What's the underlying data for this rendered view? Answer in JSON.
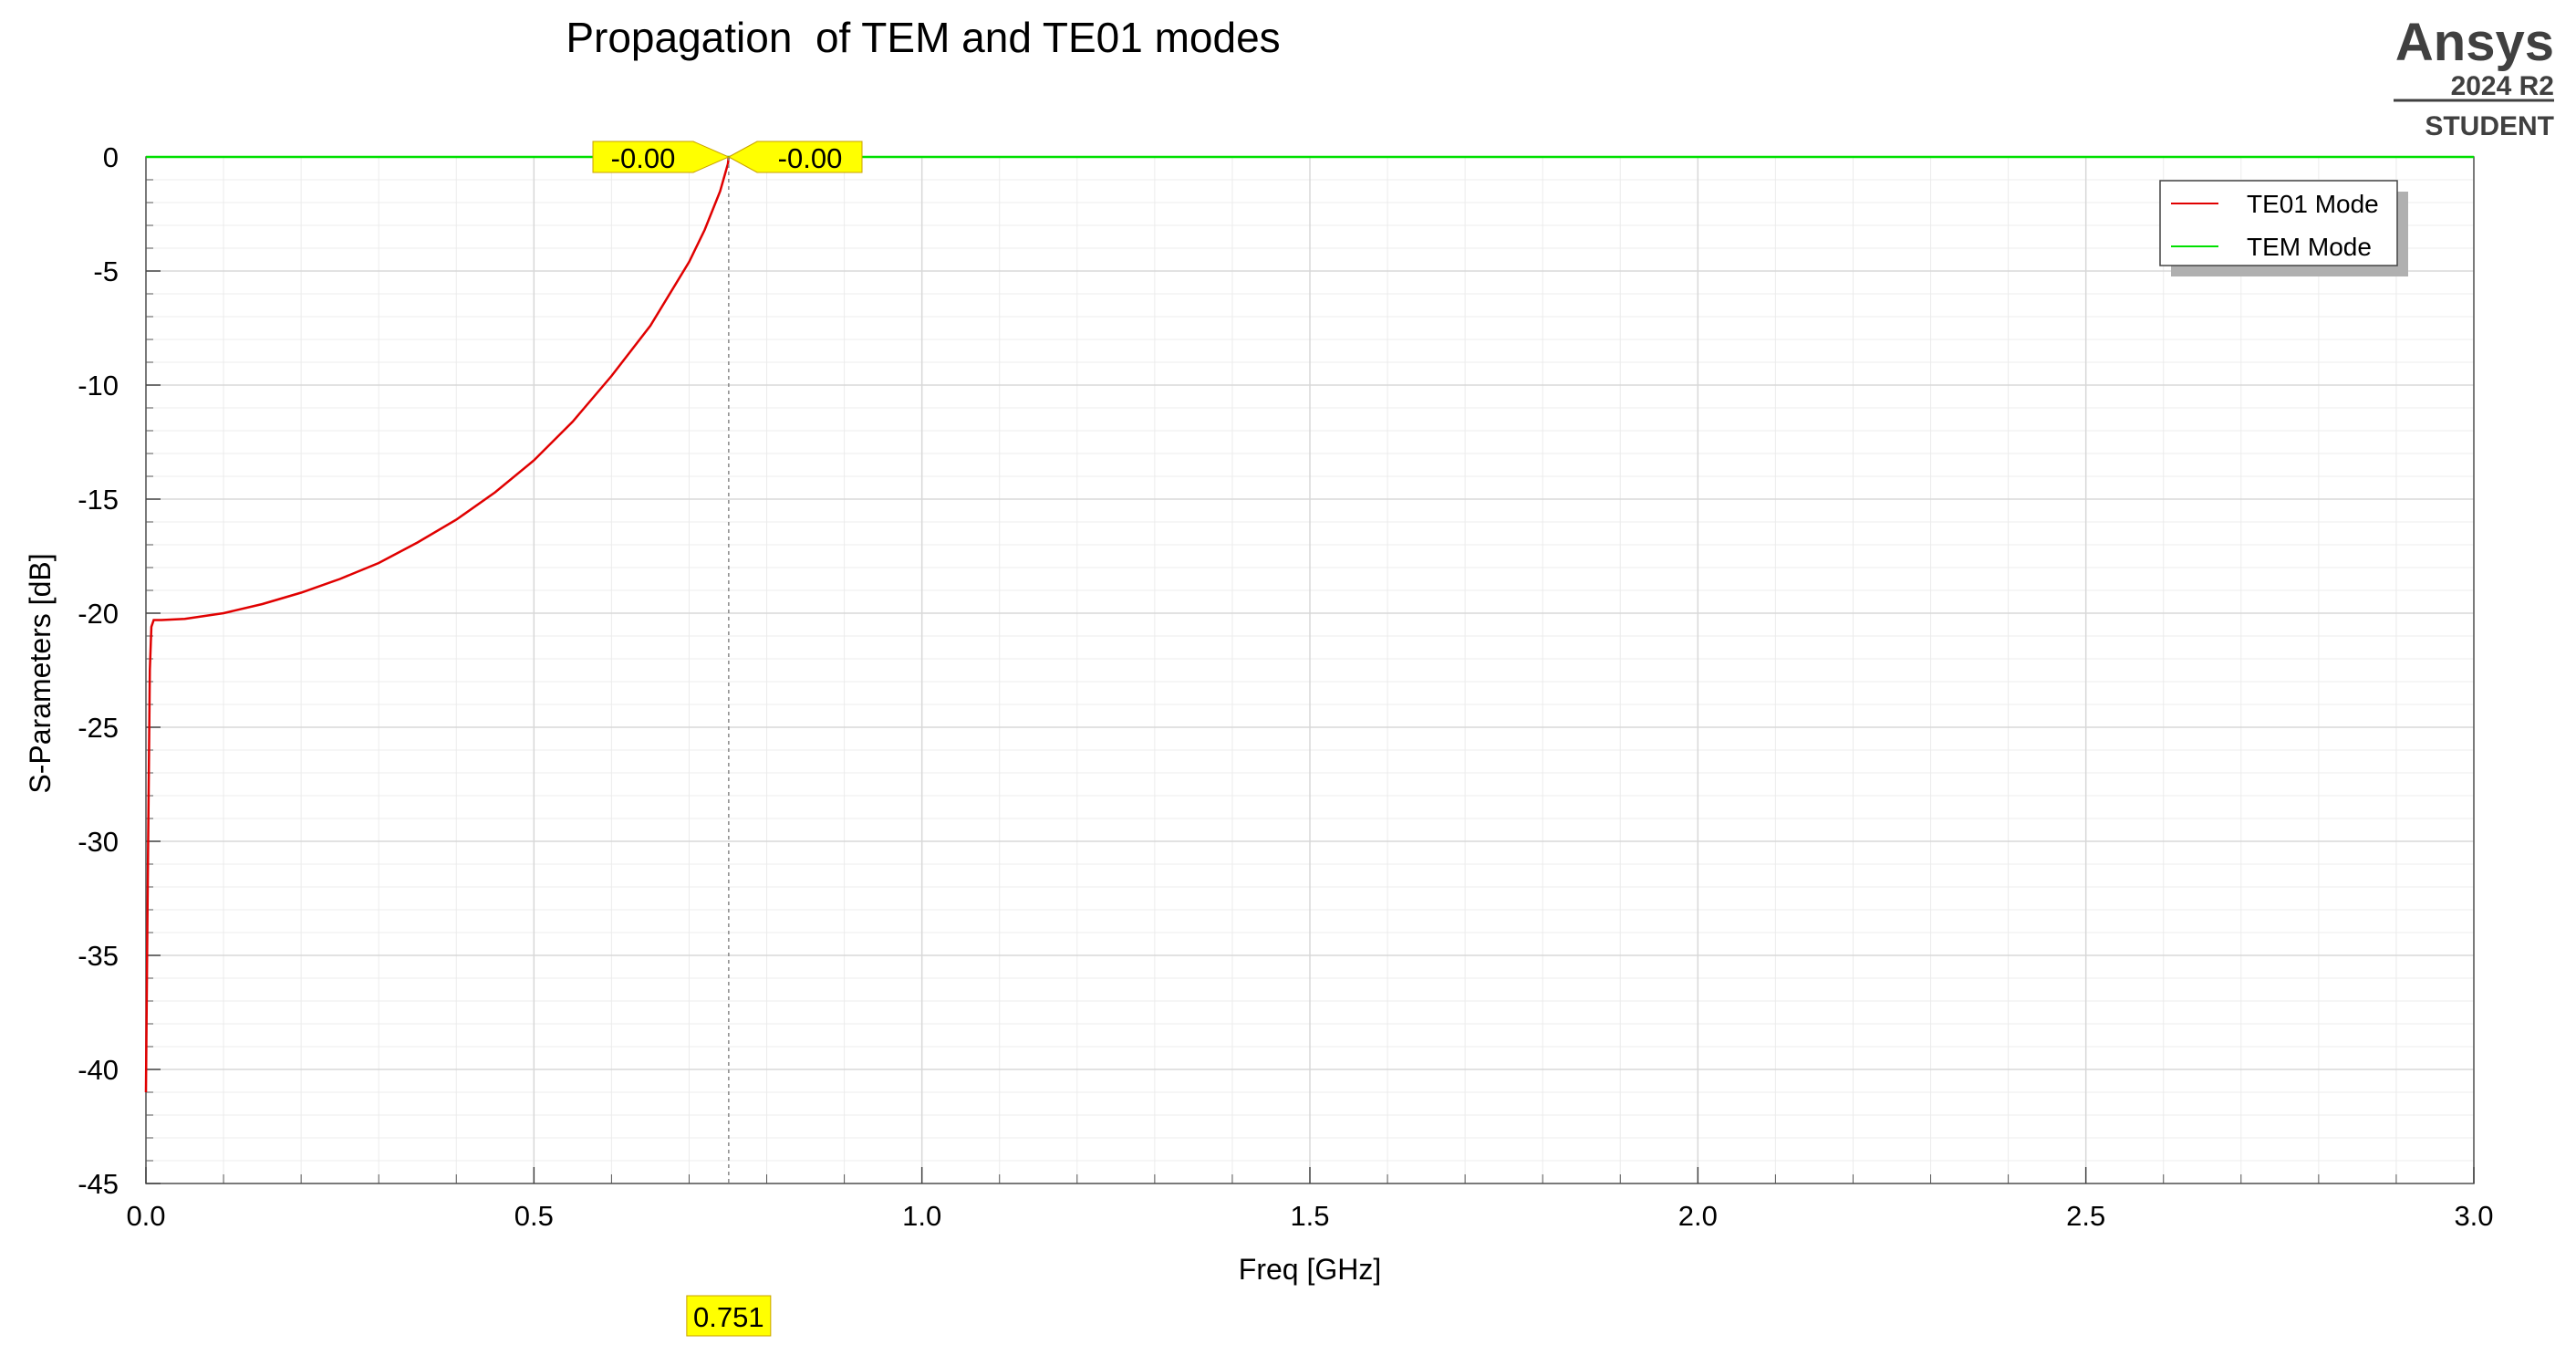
{
  "chart_data": {
    "type": "line",
    "title": "Propagation  of TEM and TE01 modes",
    "xlabel": "Freq [GHz]",
    "ylabel": "S-Parameters [dB]",
    "xlim": [
      0,
      3.0
    ],
    "ylim": [
      -45,
      0
    ],
    "x_ticks": [
      "0.0",
      "0.5",
      "1.0",
      "1.5",
      "2.0",
      "2.5",
      "3.0"
    ],
    "y_ticks": [
      "0",
      "-5",
      "-10",
      "-15",
      "-20",
      "-25",
      "-30",
      "-35",
      "-40",
      "-45"
    ],
    "grid": true,
    "legend_position": "top-right",
    "series": [
      {
        "name": "TE01 Mode",
        "color": "#e00000",
        "x": [
          0.0,
          0.001,
          0.002,
          0.003,
          0.004,
          0.005,
          0.007,
          0.01,
          0.02,
          0.05,
          0.1,
          0.15,
          0.2,
          0.25,
          0.3,
          0.35,
          0.4,
          0.45,
          0.5,
          0.55,
          0.6,
          0.65,
          0.7,
          0.72,
          0.74,
          0.75,
          0.751
        ],
        "y": [
          -41,
          -37,
          -33,
          -29.5,
          -26,
          -22.5,
          -20.6,
          -20.3,
          -20.3,
          -20.25,
          -20.0,
          -19.6,
          -19.1,
          -18.5,
          -17.8,
          -16.9,
          -15.9,
          -14.7,
          -13.3,
          -11.6,
          -9.6,
          -7.4,
          -4.6,
          -3.2,
          -1.5,
          -0.3,
          0.0
        ]
      },
      {
        "name": "TEM Mode",
        "color": "#00e000",
        "x": [
          0.0,
          3.0
        ],
        "y": [
          0.0,
          0.0
        ]
      }
    ],
    "markers": {
      "x_value": 0.751,
      "x_label": "0.751",
      "labels": [
        "-0.00",
        "-0.00"
      ]
    }
  },
  "brand": {
    "name": "Ansys",
    "version": "2024 R2",
    "edition": "STUDENT"
  },
  "colors": {
    "marker_fill": "#ffff00",
    "grid": "#d8d8d8",
    "minor_grid": "#ececec"
  }
}
